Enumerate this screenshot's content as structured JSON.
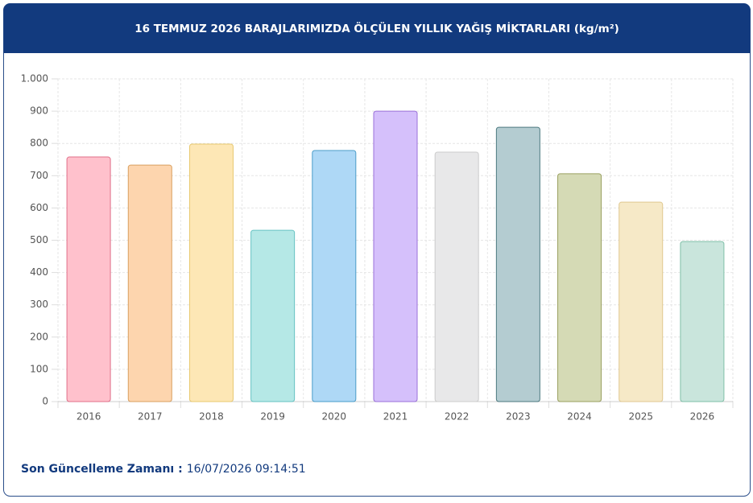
{
  "chart_data": {
    "type": "bar",
    "title": "16 TEMMUZ 2026 BARAJLARIMIZDA ÖLÇÜLEN YILLIK YAĞIŞ MİKTARLARI (kg/m²)",
    "categories": [
      "2016",
      "2017",
      "2018",
      "2019",
      "2020",
      "2021",
      "2022",
      "2023",
      "2024",
      "2025",
      "2026"
    ],
    "values": [
      758,
      733,
      798,
      531,
      778,
      900,
      773,
      850,
      706,
      618,
      496
    ],
    "colors": [
      "#ffc1cc",
      "#fdd5ae",
      "#fde7b5",
      "#b5e8e6",
      "#aed8f6",
      "#d5c0fb",
      "#e8e8e9",
      "#b4ccd1",
      "#d5dab5",
      "#f6e9c7",
      "#c9e5dc"
    ],
    "border_colors": [
      "#e0708a",
      "#d9a060",
      "#e8c870",
      "#66c2c2",
      "#4a9cc8",
      "#9a70d8",
      "#cccccc",
      "#4d7a80",
      "#9aa060",
      "#e0c890",
      "#80c0a8"
    ],
    "ylim": [
      0,
      1000
    ],
    "yticks": [
      0,
      100,
      200,
      300,
      400,
      500,
      600,
      700,
      800,
      900,
      {
        "value": 1000,
        "label": "1.000"
      }
    ],
    "grid": true
  },
  "footer": {
    "label": "Son Güncelleme Zamanı :",
    "value": "16/07/2026 09:14:51"
  }
}
